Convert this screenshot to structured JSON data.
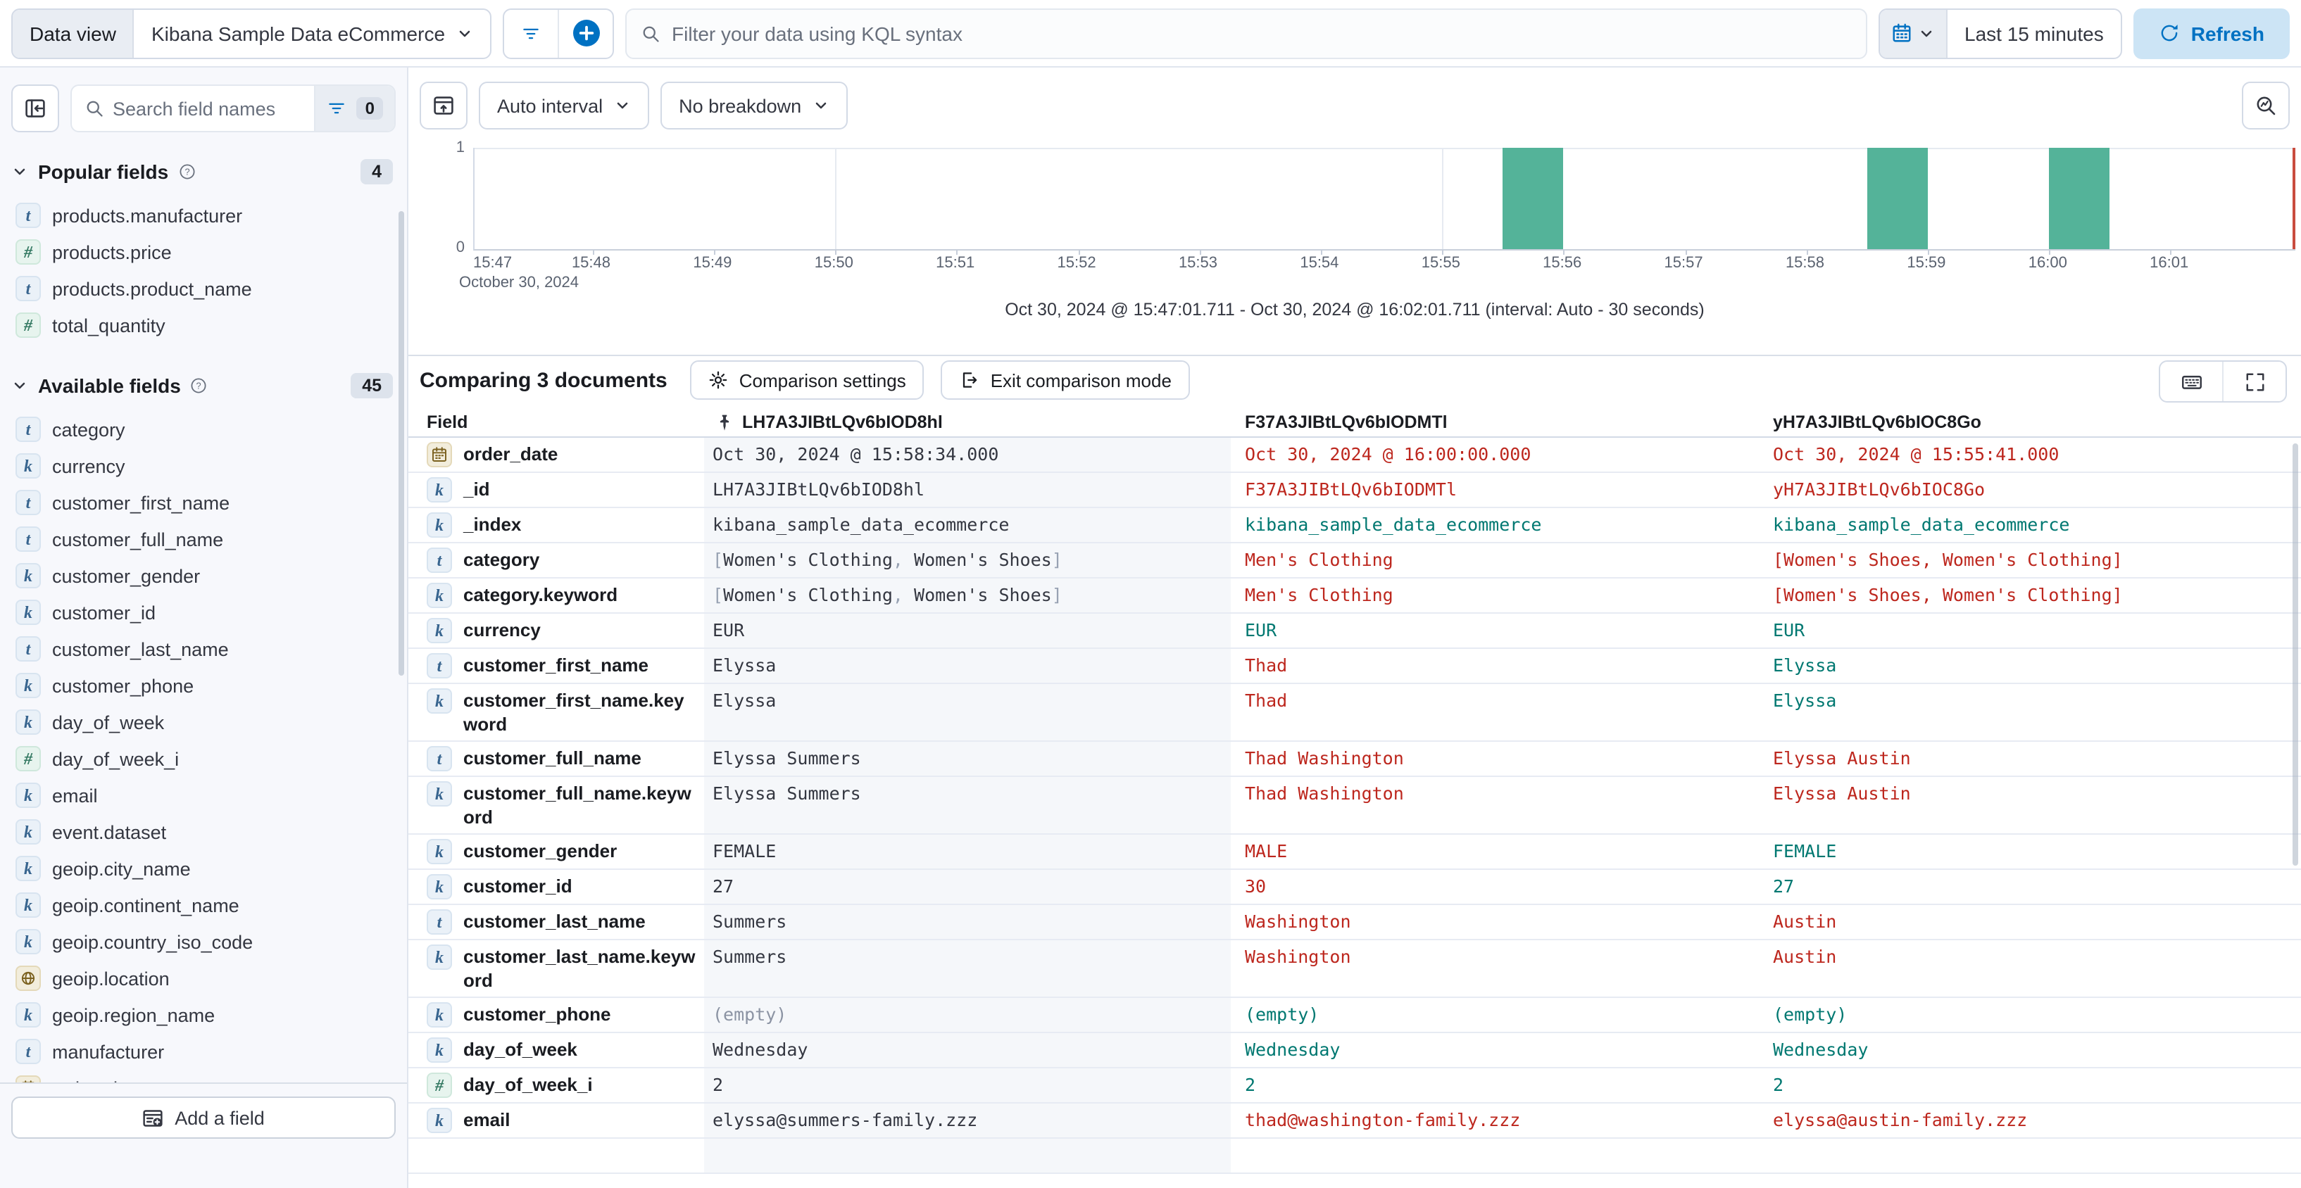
{
  "colors": {
    "accent": "#0071C2",
    "bar": "#54B399",
    "diff_text": "#BD271E",
    "match_text": "#007871",
    "pinned_column_bg": "#F5F7FA",
    "now_line": "#C94C3F"
  },
  "topbar": {
    "data_view_label": "Data view",
    "data_view_value": "Kibana Sample Data eCommerce",
    "kql_placeholder": "Filter your data using KQL syntax",
    "time_range": "Last 15 minutes",
    "refresh_label": "Refresh"
  },
  "sidebar": {
    "search_placeholder": "Search field names",
    "filter_count": "0",
    "popular": {
      "title": "Popular fields",
      "count": "4",
      "items": [
        {
          "type": "text",
          "name": "products.manufacturer"
        },
        {
          "type": "number",
          "name": "products.price"
        },
        {
          "type": "text",
          "name": "products.product_name"
        },
        {
          "type": "number",
          "name": "total_quantity"
        }
      ]
    },
    "available": {
      "title": "Available fields",
      "count": "45",
      "items": [
        {
          "type": "text",
          "name": "category"
        },
        {
          "type": "keyword",
          "name": "currency"
        },
        {
          "type": "text",
          "name": "customer_first_name"
        },
        {
          "type": "text",
          "name": "customer_full_name"
        },
        {
          "type": "keyword",
          "name": "customer_gender"
        },
        {
          "type": "keyword",
          "name": "customer_id"
        },
        {
          "type": "text",
          "name": "customer_last_name"
        },
        {
          "type": "keyword",
          "name": "customer_phone"
        },
        {
          "type": "keyword",
          "name": "day_of_week"
        },
        {
          "type": "number",
          "name": "day_of_week_i"
        },
        {
          "type": "keyword",
          "name": "email"
        },
        {
          "type": "keyword",
          "name": "event.dataset"
        },
        {
          "type": "keyword",
          "name": "geoip.city_name"
        },
        {
          "type": "keyword",
          "name": "geoip.continent_name"
        },
        {
          "type": "keyword",
          "name": "geoip.country_iso_code"
        },
        {
          "type": "geo",
          "name": "geoip.location"
        },
        {
          "type": "keyword",
          "name": "geoip.region_name"
        },
        {
          "type": "text",
          "name": "manufacturer"
        },
        {
          "type": "date",
          "name": "order_date"
        }
      ]
    },
    "add_field_label": "Add a field"
  },
  "chart": {
    "interval_label": "Auto interval",
    "breakdown_label": "No breakdown",
    "footer": "Oct 30, 2024 @ 15:47:01.711 - Oct 30, 2024 @ 16:02:01.711 (interval: Auto - 30 seconds)",
    "chart_data": {
      "type": "bar",
      "x_start": "15:47:01.711",
      "x_end": "16:02:01.711",
      "x_date_label": "October 30, 2024",
      "x_ticks": [
        "15:47",
        "15:48",
        "15:49",
        "15:50",
        "15:51",
        "15:52",
        "15:53",
        "15:54",
        "15:55",
        "15:56",
        "15:57",
        "15:58",
        "15:59",
        "16:00",
        "16:01"
      ],
      "x_gridlines": [
        "15:50",
        "15:55",
        "16:00"
      ],
      "y_ticks": [
        "0",
        "1"
      ],
      "y_max": 1,
      "bucket_seconds": 30,
      "buckets": [
        {
          "start": "15:55:30",
          "count": 1
        },
        {
          "start": "15:58:30",
          "count": 1
        },
        {
          "start": "16:00:00",
          "count": 1
        }
      ],
      "end_marker": "16:02:01.711"
    }
  },
  "comparison": {
    "title": "Comparing 3 documents",
    "settings_label": "Comparison settings",
    "exit_label": "Exit comparison mode"
  },
  "table": {
    "field_header": "Field",
    "doc_columns": [
      {
        "id": "LH7A3JIBtLQv6bIOD8hl",
        "pinned": true
      },
      {
        "id": "F37A3JIBtLQv6bIODMTl",
        "pinned": false
      },
      {
        "id": "yH7A3JIBtLQv6bIOC8Go",
        "pinned": false
      }
    ],
    "rows": [
      {
        "field": "order_date",
        "type": "date",
        "base": "Oct 30, 2024 @ 15:58:34.000",
        "comps": [
          {
            "t": "Oct 30, 2024 @ 16:00:00.000",
            "s": "diff"
          },
          {
            "t": "Oct 30, 2024 @ 15:55:41.000",
            "s": "diff"
          }
        ]
      },
      {
        "field": "_id",
        "type": "keyword",
        "base": "LH7A3JIBtLQv6bIOD8hl",
        "comps": [
          {
            "t": "F37A3JIBtLQv6bIODMTl",
            "s": "diff"
          },
          {
            "t": "yH7A3JIBtLQv6bIOC8Go",
            "s": "diff"
          }
        ]
      },
      {
        "field": "_index",
        "type": "keyword",
        "base": "kibana_sample_data_ecommerce",
        "comps": [
          {
            "t": "kibana_sample_data_ecommerce",
            "s": "same"
          },
          {
            "t": "kibana_sample_data_ecommerce",
            "s": "same"
          }
        ]
      },
      {
        "field": "category",
        "type": "text",
        "base": "[Women's Clothing, Women's Shoes]",
        "comps": [
          {
            "t": "Men's Clothing",
            "s": "diff"
          },
          {
            "t": "[Women's Shoes, Women's Clothing]",
            "s": "diff"
          }
        ]
      },
      {
        "field": "category.keyword",
        "type": "keyword",
        "base": "[Women's Clothing, Women's Shoes]",
        "comps": [
          {
            "t": "Men's Clothing",
            "s": "diff"
          },
          {
            "t": "[Women's Shoes, Women's Clothing]",
            "s": "diff"
          }
        ]
      },
      {
        "field": "currency",
        "type": "keyword",
        "base": "EUR",
        "comps": [
          {
            "t": "EUR",
            "s": "same"
          },
          {
            "t": "EUR",
            "s": "same"
          }
        ]
      },
      {
        "field": "customer_first_name",
        "type": "text",
        "base": "Elyssa",
        "comps": [
          {
            "t": "Thad",
            "s": "diff"
          },
          {
            "t": "Elyssa",
            "s": "same"
          }
        ]
      },
      {
        "field": "customer_first_name.keyword",
        "type": "keyword",
        "base": "Elyssa",
        "comps": [
          {
            "t": "Thad",
            "s": "diff"
          },
          {
            "t": "Elyssa",
            "s": "same"
          }
        ]
      },
      {
        "field": "customer_full_name",
        "type": "text",
        "base": "Elyssa Summers",
        "comps": [
          {
            "t": "Thad Washington",
            "s": "diff"
          },
          {
            "t": "Elyssa Austin",
            "s": "diff"
          }
        ]
      },
      {
        "field": "customer_full_name.keyword",
        "type": "keyword",
        "base": "Elyssa Summers",
        "comps": [
          {
            "t": "Thad Washington",
            "s": "diff"
          },
          {
            "t": "Elyssa Austin",
            "s": "diff"
          }
        ]
      },
      {
        "field": "customer_gender",
        "type": "keyword",
        "base": "FEMALE",
        "comps": [
          {
            "t": "MALE",
            "s": "diff"
          },
          {
            "t": "FEMALE",
            "s": "same"
          }
        ]
      },
      {
        "field": "customer_id",
        "type": "keyword",
        "base": "27",
        "comps": [
          {
            "t": "30",
            "s": "diff"
          },
          {
            "t": "27",
            "s": "same"
          }
        ]
      },
      {
        "field": "customer_last_name",
        "type": "text",
        "base": "Summers",
        "comps": [
          {
            "t": "Washington",
            "s": "diff"
          },
          {
            "t": "Austin",
            "s": "diff"
          }
        ]
      },
      {
        "field": "customer_last_name.keyword",
        "type": "keyword",
        "base": "Summers",
        "comps": [
          {
            "t": "Washington",
            "s": "diff"
          },
          {
            "t": "Austin",
            "s": "diff"
          }
        ]
      },
      {
        "field": "customer_phone",
        "type": "keyword",
        "base": "(empty)",
        "base_empty": true,
        "comps": [
          {
            "t": "(empty)",
            "s": "same"
          },
          {
            "t": "(empty)",
            "s": "same"
          }
        ]
      },
      {
        "field": "day_of_week",
        "type": "keyword",
        "base": "Wednesday",
        "comps": [
          {
            "t": "Wednesday",
            "s": "same"
          },
          {
            "t": "Wednesday",
            "s": "same"
          }
        ]
      },
      {
        "field": "day_of_week_i",
        "type": "number",
        "base": "2",
        "comps": [
          {
            "t": "2",
            "s": "same"
          },
          {
            "t": "2",
            "s": "same"
          }
        ]
      },
      {
        "field": "email",
        "type": "keyword",
        "base": "elyssa@summers-family.zzz",
        "comps": [
          {
            "t": "thad@washington-family.zzz",
            "s": "diff"
          },
          {
            "t": "elyssa@austin-family.zzz",
            "s": "diff"
          }
        ]
      }
    ]
  }
}
